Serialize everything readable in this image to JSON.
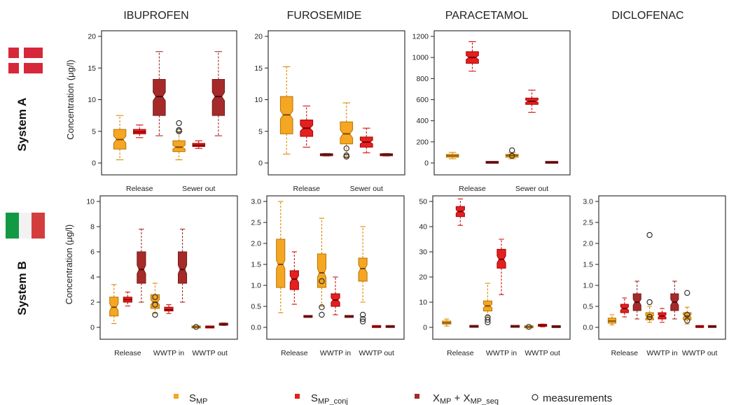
{
  "colors": {
    "s_mp": "#f5a623",
    "s_mp_conj": "#e32020",
    "x_mp": "#a52a2a",
    "whisker_s_mp": "#e08a00",
    "whisker_conj": "#d01010",
    "whisker_x": "#a52a2a",
    "measurement": "#333333"
  },
  "compounds": [
    "IBUPROFEN",
    "FUROSEMIDE",
    "PARACETAMOL",
    "DICLOFENAC"
  ],
  "systems": [
    "System A",
    "System B"
  ],
  "legend": {
    "items": [
      {
        "series": "s_mp",
        "label": "S",
        "sub": "MP"
      },
      {
        "series": "s_mp_conj",
        "label": "S",
        "sub": "MP_conj"
      },
      {
        "series": "x_mp",
        "label": "X",
        "sub": "MP",
        "label2": " + X",
        "sub2": "MP_seq"
      },
      {
        "series": "measurements",
        "label": "measurements"
      }
    ]
  },
  "chart_data": [
    {
      "type": "box",
      "system": "System A",
      "compound": "IBUPROFEN",
      "ylabel": "Concentration (μg/l)",
      "ylim": [
        0,
        20
      ],
      "yticks": [
        0,
        5,
        10,
        15,
        20
      ],
      "groups": [
        "Release",
        "Sewer out"
      ],
      "boxes": [
        {
          "group": "Release",
          "series": "s_mp",
          "min": 0.5,
          "q1": 2.2,
          "median": 3.7,
          "q3": 5.3,
          "max": 7.5
        },
        {
          "group": "Release",
          "series": "s_mp_conj",
          "min": 4.0,
          "q1": 4.6,
          "median": 4.9,
          "q3": 5.3,
          "max": 6.0
        },
        {
          "group": "Release",
          "series": "x_mp",
          "min": 4.3,
          "q1": 7.5,
          "median": 10.5,
          "q3": 13.2,
          "max": 17.6
        },
        {
          "group": "Sewer out",
          "series": "s_mp",
          "min": 0.5,
          "q1": 1.8,
          "median": 2.5,
          "q3": 3.5,
          "max": 5.0
        },
        {
          "group": "Sewer out",
          "series": "s_mp_conj",
          "min": 2.3,
          "q1": 2.6,
          "median": 2.8,
          "q3": 3.1,
          "max": 3.5
        },
        {
          "group": "Sewer out",
          "series": "x_mp",
          "min": 4.3,
          "q1": 7.5,
          "median": 10.5,
          "q3": 13.2,
          "max": 17.6
        }
      ],
      "measurements": [
        {
          "group": "Sewer out",
          "series": "s_mp",
          "values": [
            6.3,
            5.2,
            5.0
          ]
        }
      ]
    },
    {
      "type": "box",
      "system": "System A",
      "compound": "FUROSEMIDE",
      "ylim": [
        0,
        20
      ],
      "yticks": [
        0,
        5,
        10,
        15,
        20
      ],
      "groups": [
        "Release",
        "Sewer out"
      ],
      "boxes": [
        {
          "group": "Release",
          "series": "s_mp",
          "min": 1.4,
          "q1": 4.6,
          "median": 7.6,
          "q3": 10.5,
          "max": 15.2
        },
        {
          "group": "Release",
          "series": "s_mp_conj",
          "min": 2.5,
          "q1": 4.2,
          "median": 5.5,
          "q3": 6.8,
          "max": 9.0
        },
        {
          "group": "Release",
          "series": "x_mp",
          "min": 1.1,
          "q1": 1.2,
          "median": 1.3,
          "q3": 1.4,
          "max": 1.5
        },
        {
          "group": "Sewer out",
          "series": "s_mp",
          "min": 1.0,
          "q1": 3.0,
          "median": 4.6,
          "q3": 6.5,
          "max": 9.5
        },
        {
          "group": "Sewer out",
          "series": "s_mp_conj",
          "min": 1.6,
          "q1": 2.5,
          "median": 3.3,
          "q3": 4.1,
          "max": 5.5
        },
        {
          "group": "Sewer out",
          "series": "x_mp",
          "min": 1.1,
          "q1": 1.2,
          "median": 1.3,
          "q3": 1.4,
          "max": 1.5
        }
      ],
      "measurements": [
        {
          "group": "Sewer out",
          "series": "s_mp",
          "values": [
            2.3,
            1.2,
            1.0
          ]
        }
      ]
    },
    {
      "type": "box",
      "system": "System A",
      "compound": "PARACETAMOL",
      "ylim": [
        0,
        1200
      ],
      "yticks": [
        0,
        200,
        400,
        600,
        800,
        1000,
        1200
      ],
      "groups": [
        "Release",
        "Sewer out"
      ],
      "boxes": [
        {
          "group": "Release",
          "series": "s_mp",
          "min": 40,
          "q1": 55,
          "median": 68,
          "q3": 82,
          "max": 100
        },
        {
          "group": "Release",
          "series": "s_mp_conj",
          "min": 870,
          "q1": 945,
          "median": 1000,
          "q3": 1055,
          "max": 1150
        },
        {
          "group": "Release",
          "series": "x_mp",
          "min": 2,
          "q1": 4,
          "median": 6,
          "q3": 8,
          "max": 10
        },
        {
          "group": "Sewer out",
          "series": "s_mp",
          "min": 40,
          "q1": 55,
          "median": 70,
          "q3": 82,
          "max": 100
        },
        {
          "group": "Sewer out",
          "series": "s_mp_conj",
          "min": 480,
          "q1": 555,
          "median": 585,
          "q3": 615,
          "max": 690
        },
        {
          "group": "Sewer out",
          "series": "x_mp",
          "min": 2,
          "q1": 4,
          "median": 6,
          "q3": 8,
          "max": 10
        }
      ],
      "measurements": [
        {
          "group": "Sewer out",
          "series": "s_mp",
          "values": [
            120,
            68
          ]
        }
      ]
    },
    {
      "type": "box",
      "system": "System B",
      "compound": "IBUPROFEN",
      "ylabel": "Concentration (μg/l)",
      "ylim": [
        0,
        10
      ],
      "yticks": [
        0,
        2,
        4,
        6,
        8,
        10
      ],
      "groups": [
        "Release",
        "WWTP in",
        "WWTP out"
      ],
      "boxes": [
        {
          "group": "Release",
          "series": "s_mp",
          "min": 0.3,
          "q1": 0.9,
          "median": 1.6,
          "q3": 2.4,
          "max": 3.4
        },
        {
          "group": "Release",
          "series": "s_mp_conj",
          "min": 1.7,
          "q1": 2.0,
          "median": 2.2,
          "q3": 2.4,
          "max": 2.8
        },
        {
          "group": "Release",
          "series": "x_mp",
          "min": 2.0,
          "q1": 3.5,
          "median": 4.6,
          "q3": 6.0,
          "max": 7.8
        },
        {
          "group": "WWTP in",
          "series": "s_mp",
          "min": 1.1,
          "q1": 1.5,
          "median": 2.0,
          "q3": 2.6,
          "max": 3.5
        },
        {
          "group": "WWTP in",
          "series": "s_mp_conj",
          "min": 1.1,
          "q1": 1.3,
          "median": 1.4,
          "q3": 1.6,
          "max": 1.8
        },
        {
          "group": "WWTP in",
          "series": "x_mp",
          "min": 2.0,
          "q1": 3.5,
          "median": 4.6,
          "q3": 6.0,
          "max": 7.8
        },
        {
          "group": "WWTP out",
          "series": "s_mp",
          "min": 0.0,
          "q1": 0.01,
          "median": 0.03,
          "q3": 0.05,
          "max": 0.08
        },
        {
          "group": "WWTP out",
          "series": "s_mp_conj",
          "min": 0.0,
          "q1": 0.01,
          "median": 0.03,
          "q3": 0.05,
          "max": 0.08
        },
        {
          "group": "WWTP out",
          "series": "x_mp",
          "min": 0.15,
          "q1": 0.2,
          "median": 0.25,
          "q3": 0.3,
          "max": 0.35
        }
      ],
      "measurements": [
        {
          "group": "WWTP in",
          "series": "s_mp",
          "values": [
            2.4,
            1.8,
            1.0
          ]
        },
        {
          "group": "WWTP out",
          "series": "s_mp",
          "values": [
            0.03
          ]
        }
      ]
    },
    {
      "type": "box",
      "system": "System B",
      "compound": "FUROSEMIDE",
      "ylim": [
        0,
        3.0
      ],
      "yticks": [
        0.0,
        0.5,
        1.0,
        1.5,
        2.0,
        2.5,
        3.0
      ],
      "ytick_labels": [
        "0.0",
        "0.5",
        "1.0",
        "1.5",
        "2.0",
        "2.5",
        "3.0"
      ],
      "groups": [
        "Release",
        "WWTP in",
        "WWTP out"
      ],
      "boxes": [
        {
          "group": "Release",
          "series": "s_mp",
          "min": 0.35,
          "q1": 0.95,
          "median": 1.5,
          "q3": 2.1,
          "max": 3.0
        },
        {
          "group": "Release",
          "series": "s_mp_conj",
          "min": 0.55,
          "q1": 0.9,
          "median": 1.15,
          "q3": 1.35,
          "max": 1.8
        },
        {
          "group": "Release",
          "series": "x_mp",
          "min": 0.24,
          "q1": 0.25,
          "median": 0.26,
          "q3": 0.27,
          "max": 0.28
        },
        {
          "group": "WWTP in",
          "series": "s_mp",
          "min": 0.5,
          "q1": 0.95,
          "median": 1.3,
          "q3": 1.75,
          "max": 2.6
        },
        {
          "group": "WWTP in",
          "series": "s_mp_conj",
          "min": 0.3,
          "q1": 0.5,
          "median": 0.65,
          "q3": 0.8,
          "max": 1.2
        },
        {
          "group": "WWTP in",
          "series": "x_mp",
          "min": 0.24,
          "q1": 0.25,
          "median": 0.26,
          "q3": 0.27,
          "max": 0.28
        },
        {
          "group": "WWTP out",
          "series": "s_mp",
          "min": 0.6,
          "q1": 1.1,
          "median": 1.4,
          "q3": 1.65,
          "max": 2.4
        },
        {
          "group": "WWTP out",
          "series": "s_mp_conj",
          "min": 0.0,
          "q1": 0.01,
          "median": 0.02,
          "q3": 0.03,
          "max": 0.04
        },
        {
          "group": "WWTP out",
          "series": "x_mp",
          "min": 0.0,
          "q1": 0.01,
          "median": 0.02,
          "q3": 0.03,
          "max": 0.04
        }
      ],
      "measurements": [
        {
          "group": "WWTP in",
          "series": "s_mp",
          "values": [
            1.1,
            0.48,
            0.3
          ]
        },
        {
          "group": "WWTP out",
          "series": "s_mp",
          "values": [
            0.3,
            0.2,
            0.14
          ]
        }
      ]
    },
    {
      "type": "box",
      "system": "System B",
      "compound": "PARACETAMOL",
      "ylim": [
        0,
        50
      ],
      "yticks": [
        0,
        10,
        20,
        30,
        40,
        50
      ],
      "groups": [
        "Release",
        "WWTP in",
        "WWTP out"
      ],
      "boxes": [
        {
          "group": "Release",
          "series": "s_mp",
          "min": 0.5,
          "q1": 1.3,
          "median": 1.8,
          "q3": 2.5,
          "max": 3.3
        },
        {
          "group": "Release",
          "series": "s_mp_conj",
          "min": 40.5,
          "q1": 44.0,
          "median": 46.0,
          "q3": 48.0,
          "max": 51.0
        },
        {
          "group": "Release",
          "series": "x_mp",
          "min": 0.2,
          "q1": 0.3,
          "median": 0.4,
          "q3": 0.5,
          "max": 0.6
        },
        {
          "group": "WWTP in",
          "series": "s_mp",
          "min": 4.5,
          "q1": 6.5,
          "median": 8.5,
          "q3": 10.5,
          "max": 17.5
        },
        {
          "group": "WWTP in",
          "series": "s_mp_conj",
          "min": 13.0,
          "q1": 23.5,
          "median": 27.0,
          "q3": 31.0,
          "max": 35.0
        },
        {
          "group": "WWTP in",
          "series": "x_mp",
          "min": 0.2,
          "q1": 0.3,
          "median": 0.4,
          "q3": 0.5,
          "max": 0.6
        },
        {
          "group": "WWTP out",
          "series": "s_mp",
          "min": 0.0,
          "q1": 0.1,
          "median": 0.2,
          "q3": 0.3,
          "max": 0.4
        },
        {
          "group": "WWTP out",
          "series": "s_mp_conj",
          "min": 0.2,
          "q1": 0.5,
          "median": 0.8,
          "q3": 1.0,
          "max": 1.3
        },
        {
          "group": "WWTP out",
          "series": "x_mp",
          "min": 0.1,
          "q1": 0.2,
          "median": 0.3,
          "q3": 0.4,
          "max": 0.5
        }
      ],
      "measurements": [
        {
          "group": "WWTP in",
          "series": "s_mp",
          "values": [
            4.0,
            3.0,
            2.0
          ]
        },
        {
          "group": "WWTP out",
          "series": "s_mp",
          "values": [
            0.2
          ]
        }
      ]
    },
    {
      "type": "box",
      "system": "System B",
      "compound": "DICLOFENAC",
      "ylim": [
        0,
        3.0
      ],
      "yticks": [
        0.0,
        0.5,
        1.0,
        1.5,
        2.0,
        2.5,
        3.0
      ],
      "ytick_labels": [
        "0.0",
        "0.5",
        "1.0",
        "1.5",
        "2.0",
        "2.5",
        "3.0"
      ],
      "groups": [
        "Release",
        "WWTP in",
        "WWTP out"
      ],
      "boxes": [
        {
          "group": "Release",
          "series": "s_mp",
          "min": 0.06,
          "q1": 0.1,
          "median": 0.15,
          "q3": 0.22,
          "max": 0.3
        },
        {
          "group": "Release",
          "series": "s_mp_conj",
          "min": 0.25,
          "q1": 0.35,
          "median": 0.45,
          "q3": 0.55,
          "max": 0.7
        },
        {
          "group": "Release",
          "series": "x_mp",
          "min": 0.2,
          "q1": 0.4,
          "median": 0.6,
          "q3": 0.8,
          "max": 1.1
        },
        {
          "group": "WWTP in",
          "series": "s_mp",
          "min": 0.12,
          "q1": 0.18,
          "median": 0.25,
          "q3": 0.35,
          "max": 0.5
        },
        {
          "group": "WWTP in",
          "series": "s_mp_conj",
          "min": 0.12,
          "q1": 0.2,
          "median": 0.27,
          "q3": 0.35,
          "max": 0.45
        },
        {
          "group": "WWTP in",
          "series": "x_mp",
          "min": 0.2,
          "q1": 0.4,
          "median": 0.6,
          "q3": 0.8,
          "max": 1.1
        },
        {
          "group": "WWTP out",
          "series": "s_mp",
          "min": 0.08,
          "q1": 0.18,
          "median": 0.27,
          "q3": 0.35,
          "max": 0.48
        },
        {
          "group": "WWTP out",
          "series": "s_mp_conj",
          "min": 0.0,
          "q1": 0.01,
          "median": 0.02,
          "q3": 0.03,
          "max": 0.04
        },
        {
          "group": "WWTP out",
          "series": "x_mp",
          "min": 0.0,
          "q1": 0.01,
          "median": 0.02,
          "q3": 0.03,
          "max": 0.04
        }
      ],
      "measurements": [
        {
          "group": "WWTP in",
          "series": "s_mp",
          "values": [
            2.2,
            0.6,
            0.25
          ]
        },
        {
          "group": "WWTP out",
          "series": "s_mp",
          "values": [
            0.82,
            0.3,
            0.16
          ]
        }
      ]
    }
  ]
}
